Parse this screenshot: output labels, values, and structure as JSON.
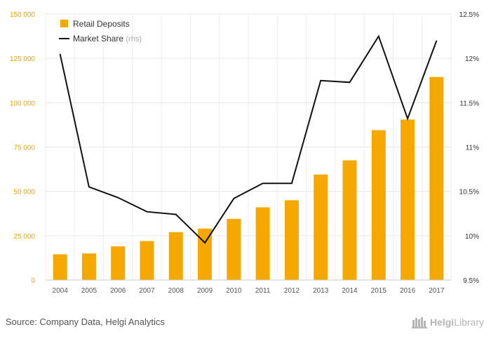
{
  "chart_data": {
    "type": "bar",
    "categories": [
      "2004",
      "2005",
      "2006",
      "2007",
      "2008",
      "2009",
      "2010",
      "2011",
      "2012",
      "2013",
      "2014",
      "2015",
      "2016",
      "2017"
    ],
    "series": [
      {
        "name": "Retail Deposits",
        "kind": "bar",
        "axis": "left",
        "color": "#f5a800",
        "values": [
          14500,
          15000,
          19000,
          22000,
          27000,
          29000,
          34500,
          41000,
          45000,
          59500,
          67500,
          84500,
          90500,
          114500
        ]
      },
      {
        "name": "Market Share",
        "suffix": "(rhs)",
        "kind": "line",
        "axis": "right",
        "color": "#111111",
        "values": [
          12.05,
          10.55,
          10.43,
          10.27,
          10.24,
          9.92,
          10.42,
          10.59,
          10.59,
          11.75,
          11.73,
          12.25,
          11.32,
          12.2
        ]
      }
    ],
    "ylim_left": [
      0,
      150000
    ],
    "yticks_left": [
      "0",
      "25 000",
      "50 000",
      "75 000",
      "100 000",
      "125 000",
      "150 000"
    ],
    "ylim_right": [
      9.5,
      12.5
    ],
    "yticks_right": [
      "9.5%",
      "10%",
      "10.5%",
      "11%",
      "11.5%",
      "12%",
      "12.5%"
    ],
    "grid": true,
    "legend_position": "top-left"
  },
  "footer": {
    "source": "Source: Company Data, Helgi Analytics",
    "brand_a": "Helgi",
    "brand_b": "Library"
  }
}
